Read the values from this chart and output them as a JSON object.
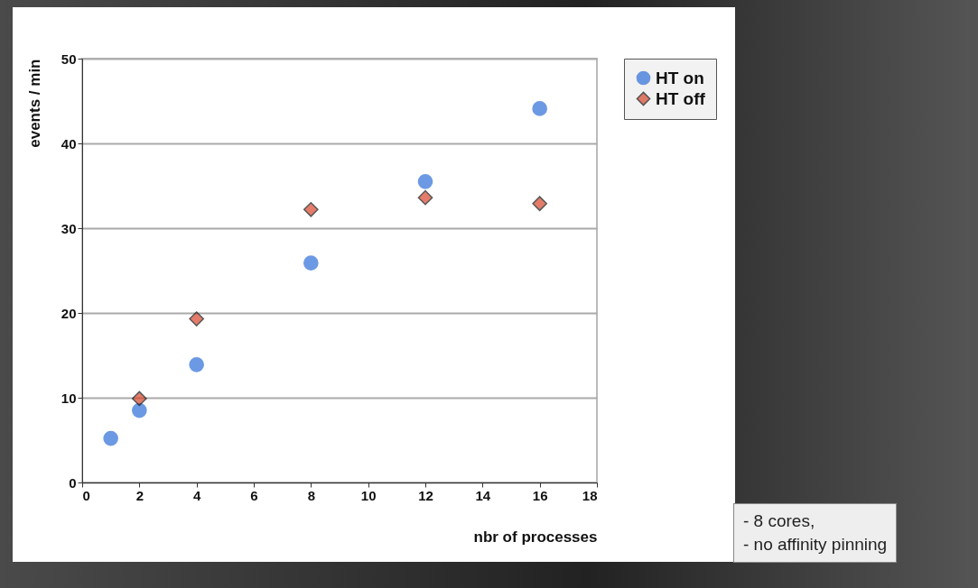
{
  "chart_data": {
    "type": "scatter",
    "xlabel": "nbr of processes",
    "ylabel": "events / min",
    "xlim": [
      0,
      18
    ],
    "xticks": [
      0,
      2,
      4,
      6,
      8,
      10,
      12,
      14,
      16,
      18
    ],
    "ylim": [
      0,
      50
    ],
    "yticks": [
      0,
      10,
      20,
      30,
      40,
      50
    ],
    "grid": "y",
    "legend": "right",
    "series": [
      {
        "name": "HT on",
        "color": "#2f6fd8",
        "marker": "circle",
        "x": [
          1,
          2,
          4,
          8,
          12,
          16
        ],
        "values": [
          5.2,
          8.5,
          13.9,
          25.9,
          35.5,
          44.1
        ]
      },
      {
        "name": "HT off",
        "color": "#d9452b",
        "marker": "diamond",
        "x": [
          2,
          4,
          8,
          12,
          16
        ],
        "values": [
          9.9,
          19.3,
          32.2,
          33.6,
          32.9
        ]
      }
    ],
    "annotations": [
      "- 8 cores,\n- no affinity pinning"
    ]
  }
}
